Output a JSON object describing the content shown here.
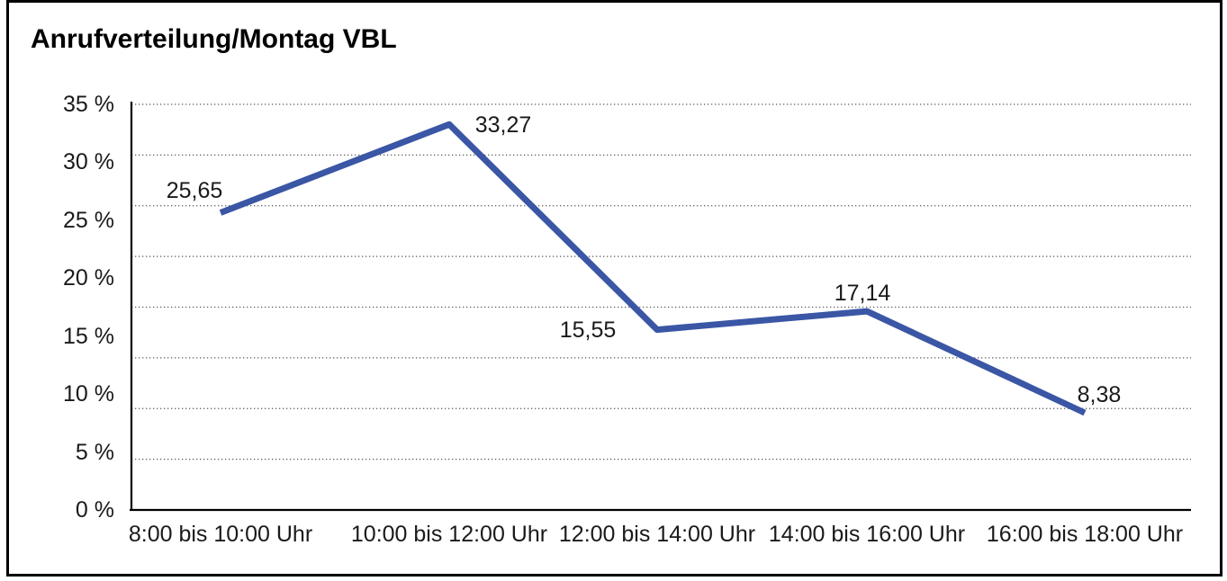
{
  "title": "Anrufverteilung/Montag VBL",
  "chart_data": {
    "type": "line",
    "title": "Anrufverteilung/Montag VBL",
    "categories": [
      "8:00 bis 10:00 Uhr",
      "10:00 bis 12:00 Uhr",
      "12:00 bis 14:00 Uhr",
      "14:00 bis 16:00 Uhr",
      "16:00 bis 18:00 Uhr"
    ],
    "values": [
      25.65,
      33.27,
      15.55,
      17.14,
      8.38
    ],
    "data_labels": [
      "25,65",
      "33,27",
      "15,55",
      "17,14",
      "8,38"
    ],
    "y_tick_labels": [
      "35 %",
      "30 %",
      "25 %",
      "20 %",
      "15 %",
      "10 %",
      "5 %",
      "0 %"
    ],
    "ylim": [
      0,
      35
    ],
    "xlabel": "",
    "ylabel": "",
    "grid": "horizontal dotted",
    "legend": "none"
  },
  "colors": {
    "line": "#3A56A5",
    "axis": "#000000",
    "grid": "#5a5a5a",
    "text": "#1a1a1a",
    "border": "#000000",
    "background": "#ffffff"
  }
}
